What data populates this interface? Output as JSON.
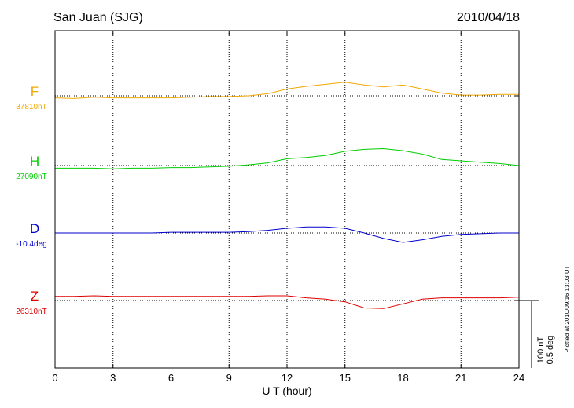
{
  "chart_data": {
    "type": "line",
    "title": "San Juan (SJG)",
    "date": "2010/04/18",
    "xlabel": "U T (hour)",
    "xlim": [
      0,
      24
    ],
    "x_ticks": [
      "0",
      "3",
      "6",
      "9",
      "12",
      "15",
      "18",
      "21",
      "24"
    ],
    "grid": true,
    "scale_label_1": "100 nT",
    "scale_label_2": "0.5 deg",
    "plotted_note": "Plotted at 2010/09/16 13:03 UT",
    "series": [
      {
        "name": "F",
        "baseline_label": "37810nT",
        "color": "#f0a800",
        "x": [
          0,
          1,
          2,
          3,
          4,
          5,
          6,
          7,
          8,
          9,
          10,
          11,
          12,
          13,
          14,
          15,
          16,
          17,
          18,
          19,
          20,
          21,
          22,
          23,
          24
        ],
        "y": [
          -3,
          -4,
          -2,
          -3,
          -3,
          -3,
          -3,
          -2,
          -1,
          -1,
          0,
          3,
          10,
          14,
          17,
          20,
          16,
          13,
          16,
          10,
          4,
          1,
          1,
          2,
          2
        ]
      },
      {
        "name": "H",
        "baseline_label": "27090nT",
        "color": "#00cc00",
        "x": [
          0,
          1,
          2,
          3,
          4,
          5,
          6,
          7,
          8,
          9,
          10,
          11,
          12,
          13,
          14,
          15,
          16,
          17,
          18,
          19,
          20,
          21,
          22,
          23,
          24
        ],
        "y": [
          -4,
          -4,
          -4,
          -5,
          -4,
          -4,
          -3,
          -3,
          -2,
          -1,
          1,
          4,
          10,
          12,
          15,
          21,
          24,
          25,
          22,
          17,
          9,
          7,
          5,
          3,
          0
        ]
      },
      {
        "name": "D",
        "baseline_label": "-10.4deg",
        "color": "#0000cc",
        "x": [
          0,
          1,
          2,
          3,
          4,
          5,
          6,
          7,
          8,
          9,
          10,
          11,
          12,
          13,
          14,
          15,
          16,
          17,
          18,
          19,
          20,
          21,
          22,
          23,
          24
        ],
        "y": [
          0,
          0,
          0,
          0,
          0,
          0,
          1,
          1,
          1,
          1,
          2,
          4,
          7,
          9,
          9,
          7,
          0,
          -8,
          -14,
          -10,
          -5,
          -2,
          -1,
          0,
          0
        ]
      },
      {
        "name": "Z",
        "baseline_label": "26310nT",
        "color": "#dd0000",
        "x": [
          0,
          1,
          2,
          3,
          4,
          5,
          6,
          7,
          8,
          9,
          10,
          11,
          12,
          13,
          14,
          15,
          16,
          17,
          18,
          19,
          20,
          21,
          22,
          23,
          24
        ],
        "y": [
          6,
          6,
          7,
          6,
          6,
          6,
          6,
          6,
          6,
          6,
          6,
          7,
          7,
          4,
          2,
          -2,
          -11,
          -12,
          -5,
          2,
          4,
          4,
          4,
          4,
          5
        ]
      }
    ]
  }
}
